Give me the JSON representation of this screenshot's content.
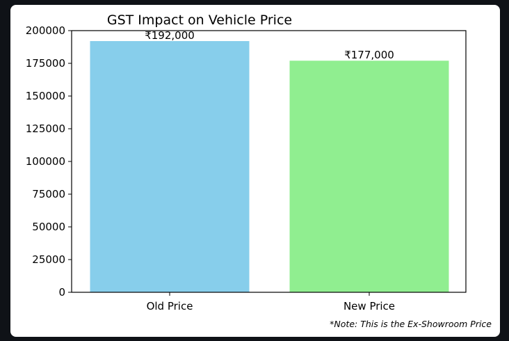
{
  "chart_data": {
    "type": "bar",
    "title": "GST Impact on Vehicle Price",
    "xlabel": "",
    "ylabel": "",
    "categories": [
      "Old Price",
      "New Price"
    ],
    "values": [
      192000,
      177000
    ],
    "data_labels": [
      "₹192,000",
      "₹177,000"
    ],
    "colors": [
      "#87ceeb",
      "#90ee90"
    ],
    "ylim": [
      0,
      200000
    ],
    "yticks": [
      0,
      25000,
      50000,
      75000,
      100000,
      125000,
      150000,
      175000,
      200000
    ],
    "ytick_labels": [
      "0",
      "25000",
      "50000",
      "75000",
      "100000",
      "125000",
      "150000",
      "175000",
      "200000"
    ],
    "grid": false,
    "annotation": "*Note: This is the Ex-Showroom Price"
  }
}
